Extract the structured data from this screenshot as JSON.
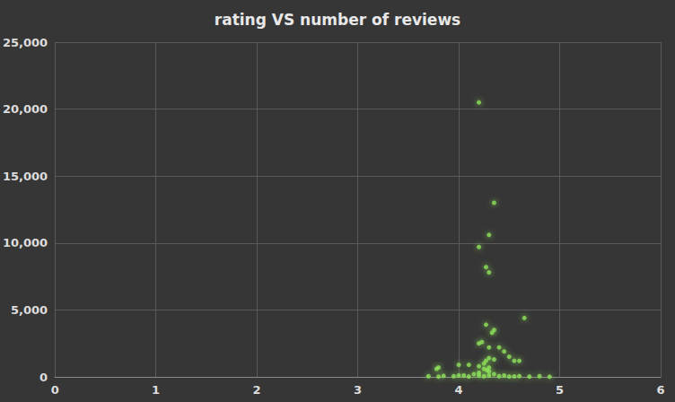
{
  "chart_data": {
    "type": "scatter",
    "title": "rating VS number of reviews",
    "color": "#8fe35a",
    "marker": "circle",
    "grid": true,
    "xlim": [
      0,
      6
    ],
    "xticks": [
      0,
      1,
      2,
      3,
      4,
      5,
      6
    ],
    "ylim": [
      0,
      25000
    ],
    "yticks": [
      0,
      5000,
      10000,
      15000,
      20000,
      25000
    ],
    "x": [
      4.2,
      4.35,
      4.3,
      4.2,
      4.27,
      4.3,
      4.65,
      4.27,
      4.35,
      4.33,
      4.2,
      4.23,
      4.3,
      4.4,
      4.45,
      4.5,
      4.55,
      4.6,
      4.3,
      4.27,
      4.25,
      4.2,
      4.1,
      4.0,
      3.8,
      3.78,
      4.35,
      4.25,
      4.3,
      4.2,
      4.15,
      4.05,
      4.0,
      3.95,
      3.7,
      3.8,
      3.85,
      4.4,
      4.5,
      4.6,
      4.7,
      4.8,
      4.9,
      4.3,
      4.35,
      4.25,
      4.1,
      4.2,
      4.45,
      4.55,
      4.3,
      4.28
    ],
    "values": [
      20500,
      13000,
      10600,
      9700,
      8200,
      7800,
      4400,
      3900,
      3500,
      3300,
      2500,
      2600,
      2200,
      2200,
      1900,
      1500,
      1200,
      1200,
      1400,
      1200,
      1000,
      800,
      900,
      900,
      700,
      600,
      1300,
      600,
      400,
      300,
      200,
      100,
      100,
      50,
      50,
      20,
      80,
      50,
      30,
      60,
      20,
      50,
      10,
      100,
      200,
      50,
      30,
      100,
      100,
      40,
      700,
      500
    ]
  }
}
